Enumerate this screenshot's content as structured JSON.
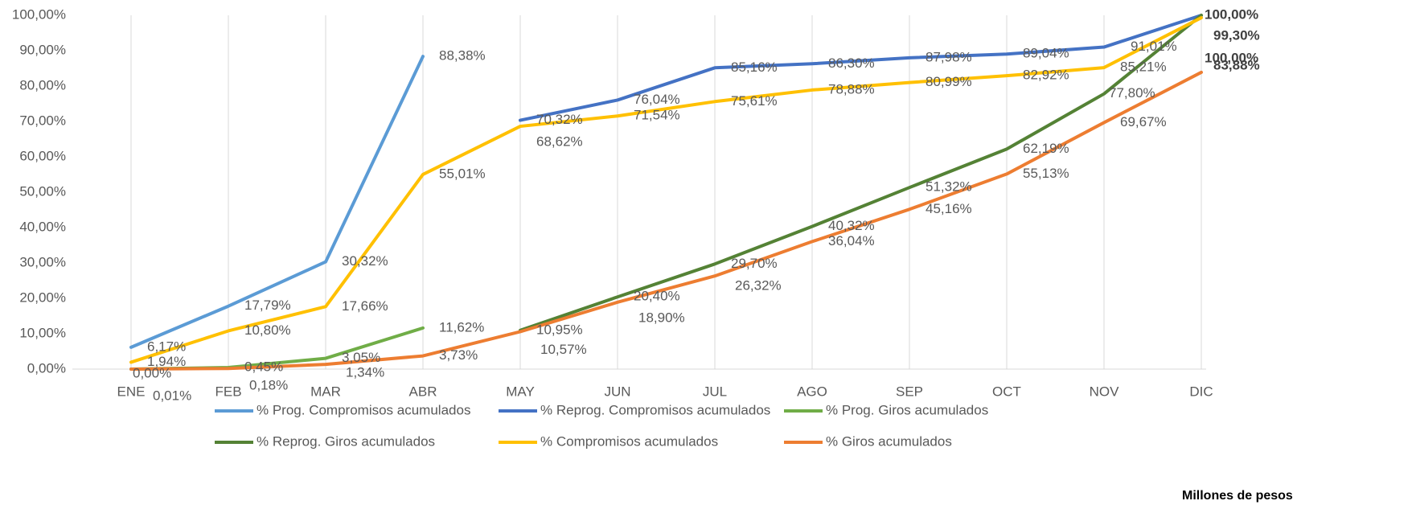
{
  "chart_data": {
    "type": "line",
    "categories": [
      "ENE",
      "FEB",
      "MAR",
      "ABR",
      "MAY",
      "JUN",
      "JUL",
      "AGO",
      "SEP",
      "OCT",
      "NOV",
      "DIC"
    ],
    "ylim": [
      0,
      100
    ],
    "yticks": [
      {
        "value": 0,
        "label": "0,00%"
      },
      {
        "value": 10,
        "label": "10,00%"
      },
      {
        "value": 20,
        "label": "20,00%"
      },
      {
        "value": 30,
        "label": "30,00%"
      },
      {
        "value": 40,
        "label": "40,00%"
      },
      {
        "value": 50,
        "label": "50,00%"
      },
      {
        "value": 60,
        "label": "60,00%"
      },
      {
        "value": 70,
        "label": "70,00%"
      },
      {
        "value": 80,
        "label": "80,00%"
      },
      {
        "value": 90,
        "label": "90,00%"
      },
      {
        "value": 100,
        "label": "100,00%"
      }
    ],
    "note": "Millones de pesos",
    "series": [
      {
        "name": "% Prog. Compromisos acumulados",
        "color": "#5b9bd5",
        "values": [
          6.17,
          17.79,
          30.32,
          88.38,
          null,
          null,
          null,
          null,
          null,
          null,
          null,
          null
        ],
        "value_labels": [
          "6,17%",
          "17,79%",
          "30,32%",
          "88,38%",
          null,
          null,
          null,
          null,
          null,
          null,
          null,
          null
        ]
      },
      {
        "name": "% Reprog. Compromisos acumulados",
        "color": "#4472c4",
        "values": [
          null,
          null,
          null,
          null,
          70.32,
          76.04,
          85.16,
          86.3,
          87.98,
          89.04,
          91.01,
          100.0
        ],
        "value_labels": [
          null,
          null,
          null,
          null,
          "70,32%",
          "76,04%",
          "85,16%",
          "86,30%",
          "87,98%",
          "89,04%",
          "91,01%",
          "100,00%"
        ]
      },
      {
        "name": "% Prog. Giros acumulados",
        "color": "#70ad47",
        "values": [
          0.0,
          0.45,
          3.05,
          11.62,
          null,
          null,
          null,
          null,
          null,
          null,
          null,
          null
        ],
        "value_labels": [
          "0,00%",
          "0,45%",
          "3,05%",
          "11,62%",
          null,
          null,
          null,
          null,
          null,
          null,
          null,
          null
        ]
      },
      {
        "name": "% Reprog. Giros acumulados",
        "color": "#548235",
        "values": [
          null,
          null,
          null,
          null,
          10.95,
          20.4,
          29.7,
          40.32,
          51.32,
          62.19,
          77.8,
          100.0
        ],
        "value_labels": [
          null,
          null,
          null,
          null,
          "10,95%",
          "20,40%",
          "29,70%",
          "40,32%",
          "51,32%",
          "62,19%",
          "77,80%",
          "100,00%"
        ]
      },
      {
        "name": "% Compromisos acumulados",
        "color": "#ffc000",
        "values": [
          1.94,
          10.8,
          17.66,
          55.01,
          68.62,
          71.54,
          75.61,
          78.88,
          80.99,
          82.92,
          85.21,
          99.3
        ],
        "value_labels": [
          "1,94%",
          "10,80%",
          "17,66%",
          "55,01%",
          "68,62%",
          "71,54%",
          "75,61%",
          "78,88%",
          "80,99%",
          "82,92%",
          "85,21%",
          "99,30%"
        ]
      },
      {
        "name": "% Giros acumulados",
        "color": "#ed7d31",
        "values": [
          0.01,
          0.18,
          1.34,
          3.73,
          10.57,
          18.9,
          26.32,
          36.04,
          45.16,
          55.13,
          69.67,
          83.88
        ],
        "value_labels": [
          "0,01%",
          "0,18%",
          "1,34%",
          "3,73%",
          "10,57%",
          "18,90%",
          "26,32%",
          "36,04%",
          "45,16%",
          "55,13%",
          "69,67%",
          "83,88%"
        ]
      }
    ]
  }
}
